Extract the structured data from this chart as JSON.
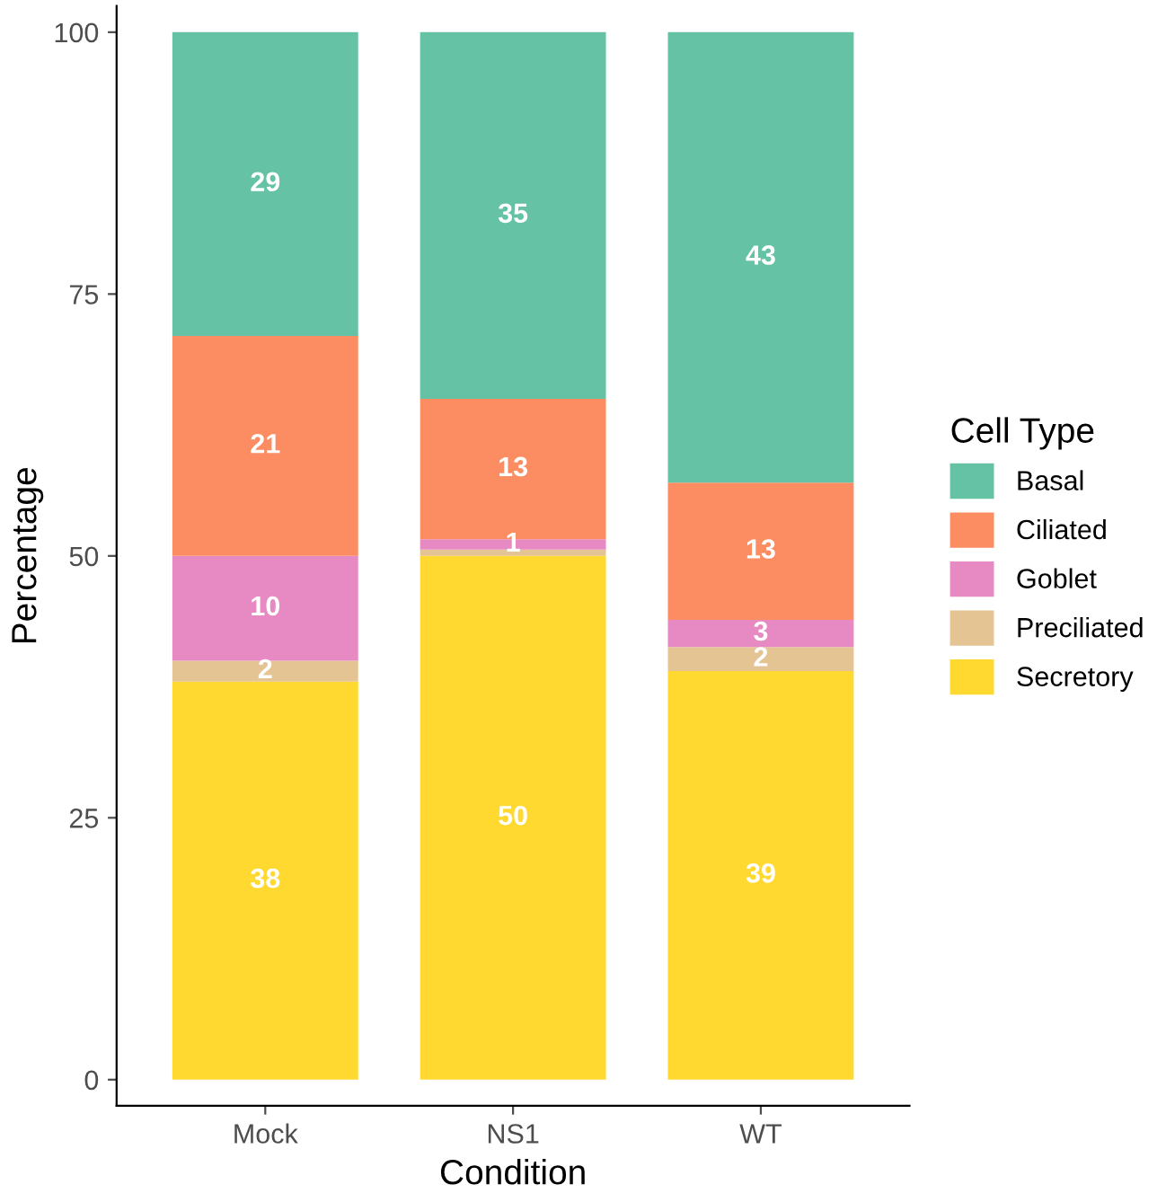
{
  "chart_data": {
    "type": "bar",
    "stacked": true,
    "xlabel": "Condition",
    "ylabel": "Percentage",
    "legend_title": "Cell Type",
    "legend": "right",
    "grid": false,
    "categories": [
      "Mock",
      "NS1",
      "WT"
    ],
    "ylim": [
      -2.5,
      102.5
    ],
    "yticks": [
      0,
      25,
      50,
      75,
      100
    ],
    "series": [
      {
        "name": "Secretory",
        "color": "#ffd92f",
        "values": [
          38,
          50,
          39
        ],
        "value_labels": [
          "38",
          "50",
          "39"
        ]
      },
      {
        "name": "Preciliated",
        "color": "#e5c494",
        "values": [
          2,
          0.6,
          2.3
        ],
        "value_labels": [
          "2",
          null,
          "2"
        ]
      },
      {
        "name": "Goblet",
        "color": "#e78ac3",
        "values": [
          10,
          1,
          2.6
        ],
        "value_labels": [
          "10",
          "1",
          "3"
        ]
      },
      {
        "name": "Ciliated",
        "color": "#fc8d62",
        "values": [
          21,
          13.4,
          13.1
        ],
        "value_labels": [
          "21",
          "13",
          "13"
        ]
      },
      {
        "name": "Basal",
        "color": "#66c2a5",
        "values": [
          29,
          35,
          43
        ],
        "value_labels": [
          "29",
          "35",
          "43"
        ]
      }
    ]
  }
}
